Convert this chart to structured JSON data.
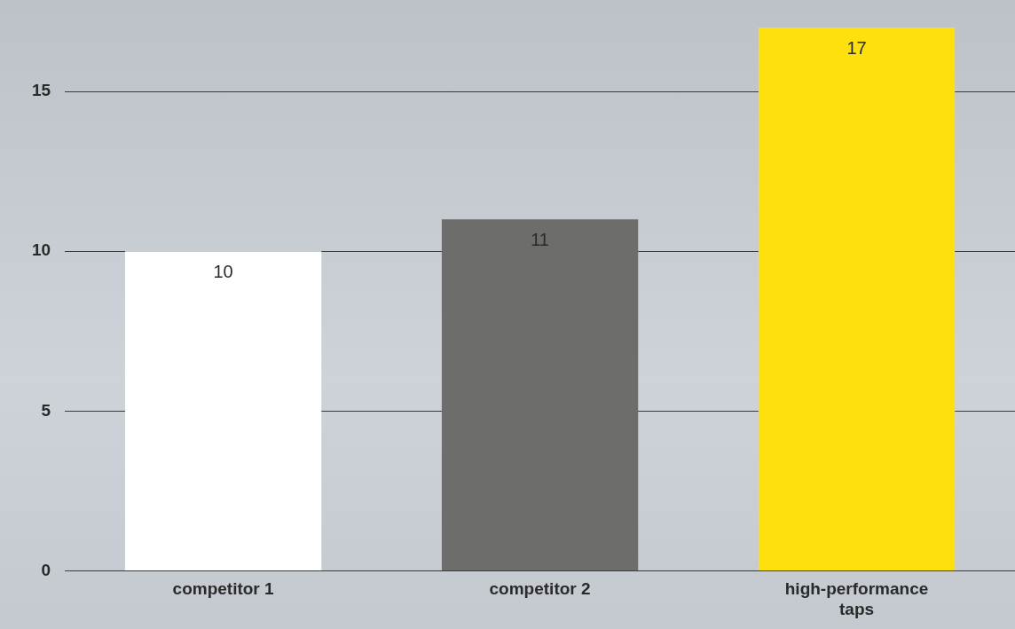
{
  "chart_data": {
    "type": "bar",
    "categories": [
      "competitor 1",
      "competitor 2",
      "high-performance taps"
    ],
    "values": [
      10,
      11,
      17
    ],
    "colors": [
      "#ffffff",
      "#6d6d6b",
      "#ffe00f"
    ],
    "ylim": [
      0,
      17.1
    ],
    "yticks": [
      0,
      5,
      10,
      15
    ],
    "grid": "y",
    "data_labels": true,
    "legend": false
  }
}
